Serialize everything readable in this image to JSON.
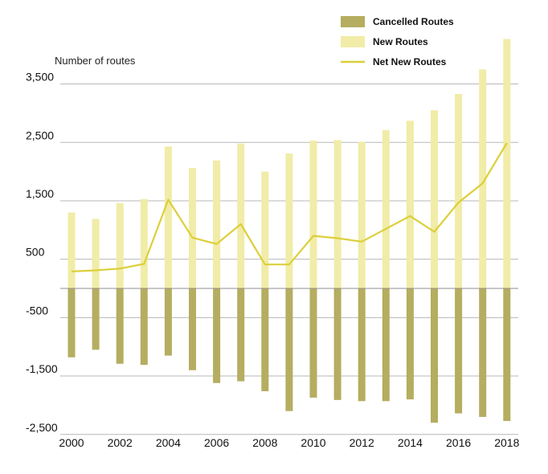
{
  "chart_data": {
    "type": "bar",
    "title": "",
    "ylabel": "Number of routes",
    "xlabel": "",
    "ylim": [
      -2500,
      4200
    ],
    "y_ticks": [
      3500,
      2500,
      1500,
      500,
      -500,
      -1500,
      -2500
    ],
    "y_tick_labels": [
      "3,500",
      "2,500",
      "1,500",
      "500",
      "-500",
      "-1,500",
      "-2,500"
    ],
    "x": [
      2000,
      2001,
      2002,
      2003,
      2004,
      2005,
      2006,
      2007,
      2008,
      2009,
      2010,
      2011,
      2012,
      2013,
      2014,
      2015,
      2016,
      2017,
      2018
    ],
    "x_tick_labels": [
      "2000",
      "2002",
      "2004",
      "2006",
      "2008",
      "2010",
      "2012",
      "2014",
      "2016",
      "2018"
    ],
    "series": [
      {
        "name": "Cancelled Routes",
        "kind": "bar",
        "color": "#b5ad60",
        "values": [
          -1180,
          -1050,
          -1290,
          -1310,
          -1150,
          -1400,
          -1620,
          -1590,
          -1760,
          -2100,
          -1870,
          -1910,
          -1930,
          -1930,
          -1900,
          -2300,
          -2140,
          -2200,
          -2270
        ]
      },
      {
        "name": "New Routes",
        "kind": "bar",
        "color": "#f1eca7",
        "values": [
          1300,
          1190,
          1460,
          1530,
          2430,
          2060,
          2190,
          2480,
          2000,
          2310,
          2530,
          2540,
          2510,
          2710,
          2870,
          3050,
          3330,
          3750,
          4270
        ]
      },
      {
        "name": "Net New Routes",
        "kind": "line",
        "color": "#dccf3a",
        "values": [
          290,
          310,
          340,
          420,
          1520,
          870,
          760,
          1100,
          410,
          410,
          900,
          860,
          800,
          1020,
          1240,
          970,
          1470,
          1800,
          2490
        ]
      }
    ],
    "legend": {
      "position": "top-right",
      "items": [
        {
          "label": "Cancelled Routes",
          "symbol": "box",
          "color": "#b5ad60"
        },
        {
          "label": "New Routes",
          "symbol": "box",
          "color": "#f1eca7"
        },
        {
          "label": "Net New Routes",
          "symbol": "line",
          "color": "#dccf3a"
        }
      ]
    },
    "grid": true
  }
}
